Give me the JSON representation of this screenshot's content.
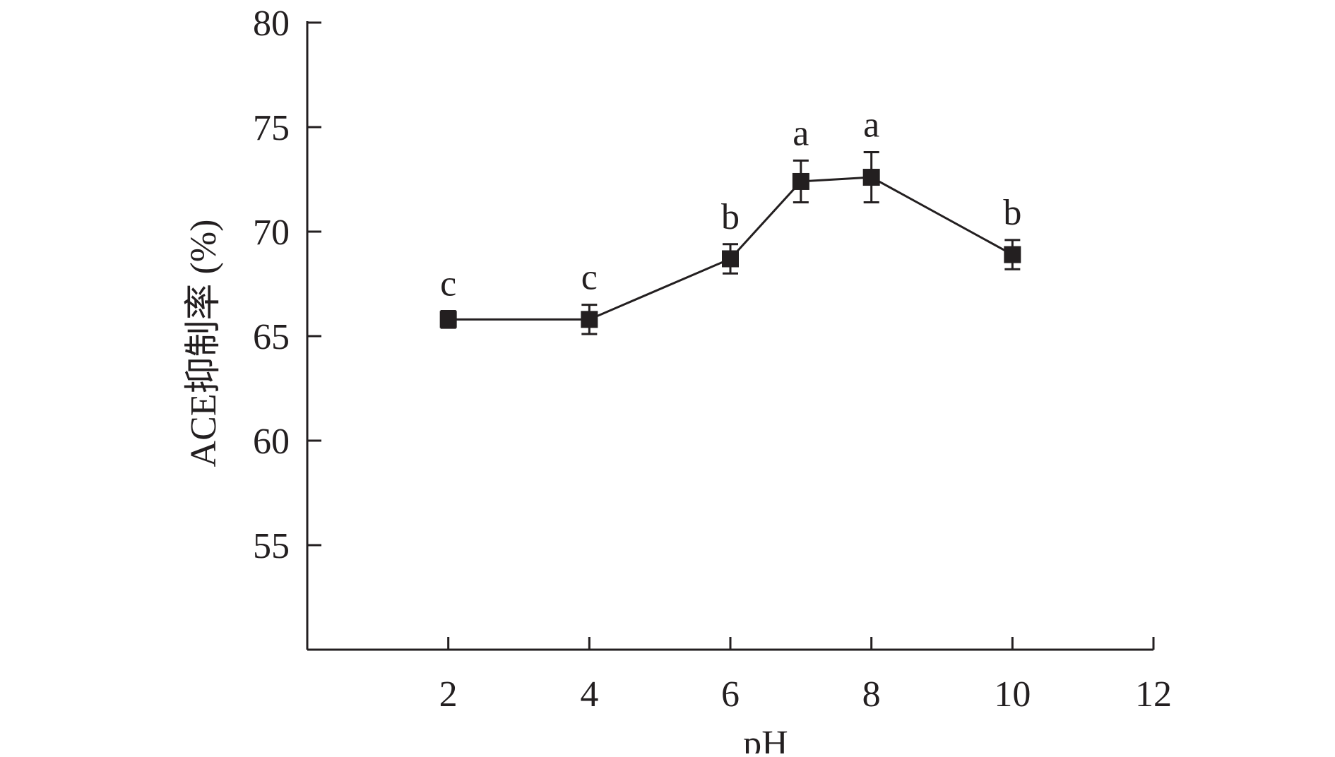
{
  "chart_data": {
    "type": "line",
    "xlabel": "pH",
    "ylabel": "ACE抑制率 (%)",
    "xlim": [
      0,
      12
    ],
    "ylim": [
      50,
      80
    ],
    "xticks": [
      2,
      4,
      6,
      8,
      10,
      12
    ],
    "yticks": [
      55,
      60,
      65,
      70,
      75,
      80
    ],
    "grid": false,
    "colors": {
      "ink": "#231f20"
    },
    "series": [
      {
        "x": [
          2,
          4,
          6,
          7,
          8,
          10
        ],
        "y": [
          65.8,
          65.8,
          68.7,
          72.4,
          72.6,
          68.9
        ],
        "error": [
          0.4,
          0.7,
          0.7,
          1.0,
          1.2,
          0.7
        ],
        "labels": [
          "c",
          "c",
          "b",
          "a",
          "a",
          "b"
        ],
        "marker": "square"
      }
    ]
  }
}
